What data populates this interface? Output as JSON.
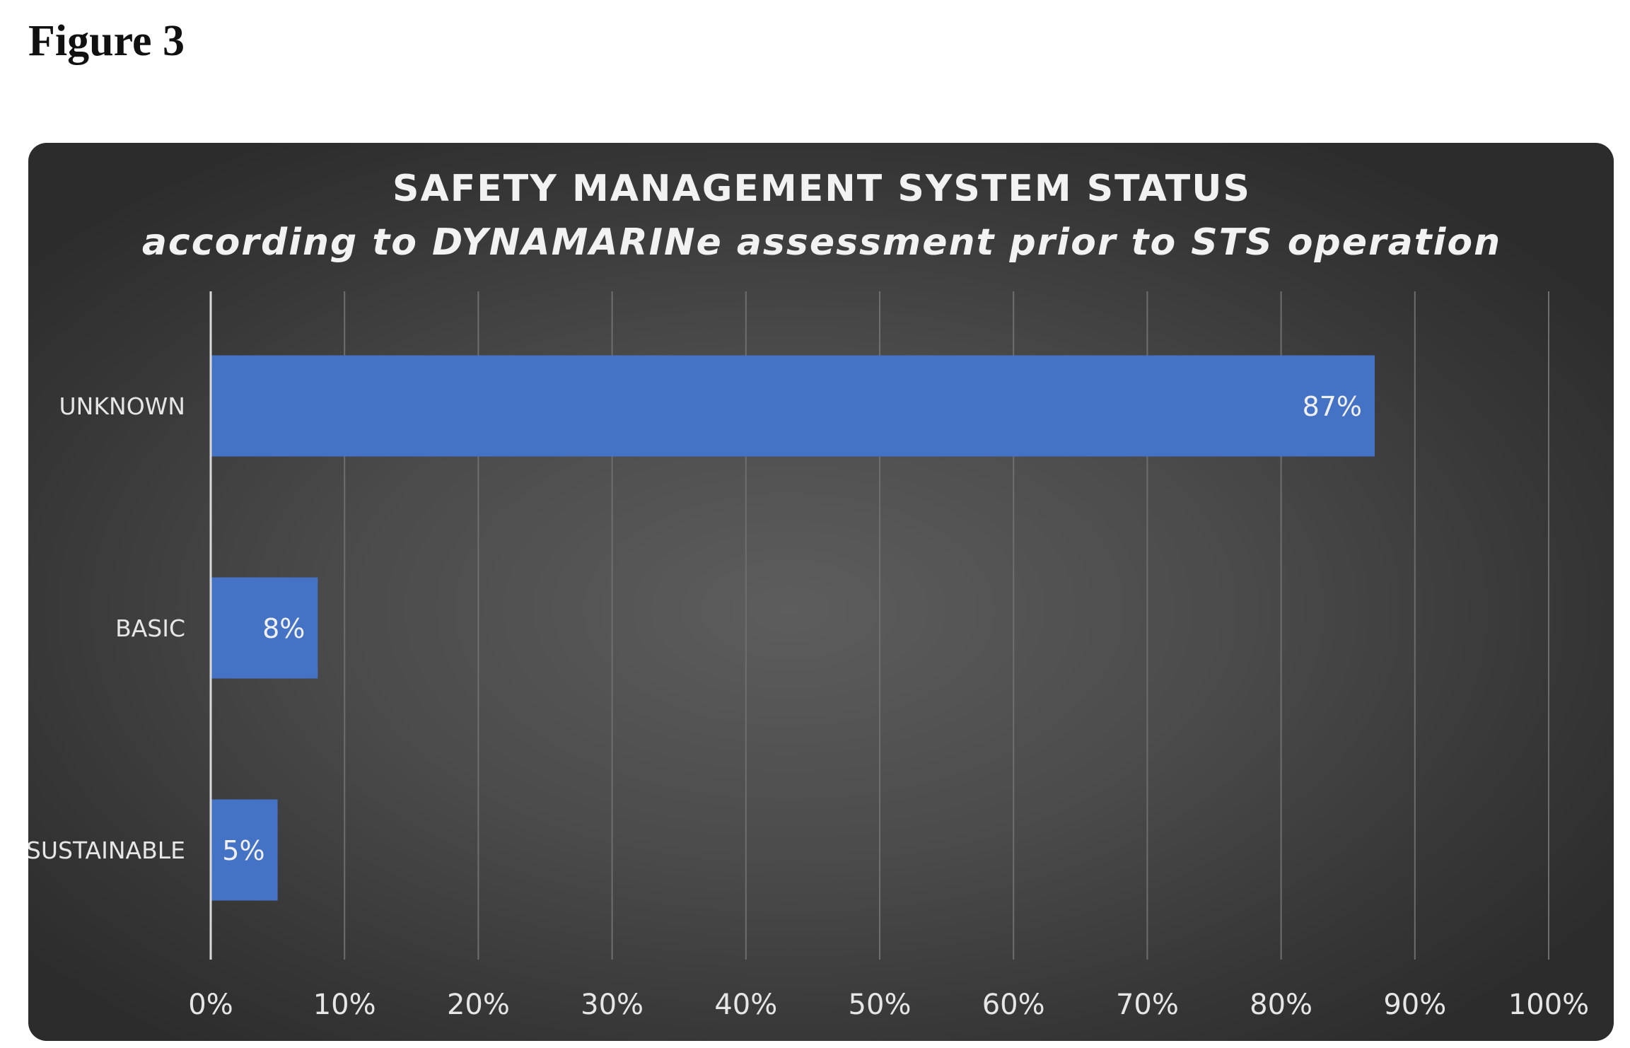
{
  "figure_label": "Figure 3",
  "colors": {
    "bar": "#4472c4",
    "gridline": "#6e6e6e",
    "axis": "#d9d9d9"
  },
  "chart_data": {
    "type": "bar",
    "orientation": "horizontal",
    "title": "SAFETY MANAGEMENT SYSTEM STATUS",
    "subtitle": "according to DYNAMARINe assessment prior to STS operation",
    "categories": [
      "UNKNOWN",
      "BASIC",
      "SUSTAINABLE"
    ],
    "values": [
      87,
      8,
      5
    ],
    "value_labels": [
      "87%",
      "8%",
      "5%"
    ],
    "xlim": [
      0,
      100
    ],
    "x_ticks": [
      "0%",
      "10%",
      "20%",
      "30%",
      "40%",
      "50%",
      "60%",
      "70%",
      "80%",
      "90%",
      "100%"
    ],
    "grid": true,
    "legend": "none"
  }
}
